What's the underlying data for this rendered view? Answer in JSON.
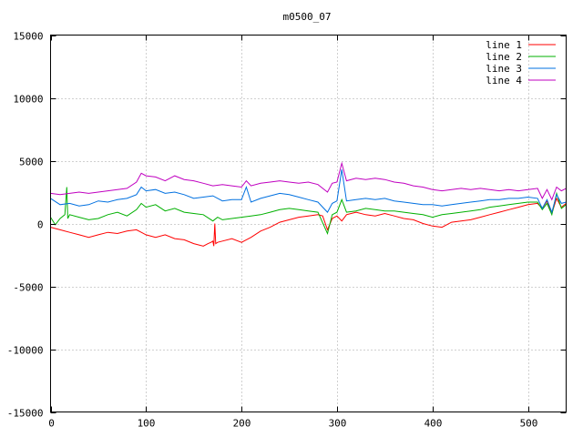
{
  "chart_data": {
    "type": "line",
    "title": "m0500_07",
    "xlabel": "",
    "ylabel": "",
    "xlim": [
      0,
      540
    ],
    "ylim": [
      -15000,
      15000
    ],
    "xticks": [
      0,
      100,
      200,
      300,
      400,
      500
    ],
    "yticks": [
      -15000,
      -10000,
      -5000,
      0,
      5000,
      10000,
      15000
    ],
    "grid": true,
    "legend_position": "top-right",
    "series": [
      {
        "name": "line 1",
        "color": "#ff0000",
        "points": [
          [
            0,
            -300
          ],
          [
            10,
            -500
          ],
          [
            20,
            -700
          ],
          [
            30,
            -900
          ],
          [
            40,
            -1100
          ],
          [
            50,
            -900
          ],
          [
            60,
            -700
          ],
          [
            70,
            -800
          ],
          [
            80,
            -600
          ],
          [
            90,
            -500
          ],
          [
            100,
            -900
          ],
          [
            110,
            -1100
          ],
          [
            120,
            -900
          ],
          [
            130,
            -1200
          ],
          [
            140,
            -1300
          ],
          [
            150,
            -1600
          ],
          [
            160,
            -1800
          ],
          [
            165,
            -1600
          ],
          [
            168,
            -1500
          ],
          [
            170,
            -1400
          ],
          [
            171,
            -1800
          ],
          [
            172,
            0
          ],
          [
            173,
            -1600
          ],
          [
            175,
            -1500
          ],
          [
            180,
            -1400
          ],
          [
            190,
            -1200
          ],
          [
            200,
            -1500
          ],
          [
            210,
            -1100
          ],
          [
            220,
            -600
          ],
          [
            230,
            -300
          ],
          [
            240,
            100
          ],
          [
            250,
            300
          ],
          [
            260,
            500
          ],
          [
            270,
            600
          ],
          [
            280,
            700
          ],
          [
            285,
            600
          ],
          [
            290,
            -500
          ],
          [
            295,
            400
          ],
          [
            300,
            600
          ],
          [
            305,
            200
          ],
          [
            310,
            700
          ],
          [
            320,
            900
          ],
          [
            330,
            700
          ],
          [
            340,
            600
          ],
          [
            350,
            800
          ],
          [
            360,
            600
          ],
          [
            370,
            400
          ],
          [
            380,
            300
          ],
          [
            390,
            0
          ],
          [
            400,
            -200
          ],
          [
            410,
            -300
          ],
          [
            420,
            100
          ],
          [
            430,
            200
          ],
          [
            440,
            300
          ],
          [
            450,
            500
          ],
          [
            460,
            700
          ],
          [
            470,
            900
          ],
          [
            480,
            1100
          ],
          [
            490,
            1300
          ],
          [
            500,
            1500
          ],
          [
            510,
            1600
          ],
          [
            515,
            1200
          ],
          [
            520,
            1800
          ],
          [
            525,
            800
          ],
          [
            530,
            2000
          ],
          [
            535,
            1300
          ],
          [
            540,
            1600
          ]
        ]
      },
      {
        "name": "line 2",
        "color": "#00b000",
        "points": [
          [
            0,
            500
          ],
          [
            5,
            -100
          ],
          [
            10,
            400
          ],
          [
            15,
            700
          ],
          [
            17,
            2900
          ],
          [
            18,
            400
          ],
          [
            20,
            700
          ],
          [
            30,
            500
          ],
          [
            40,
            300
          ],
          [
            50,
            400
          ],
          [
            60,
            700
          ],
          [
            70,
            900
          ],
          [
            80,
            600
          ],
          [
            90,
            1100
          ],
          [
            95,
            1600
          ],
          [
            100,
            1300
          ],
          [
            110,
            1500
          ],
          [
            120,
            1000
          ],
          [
            130,
            1200
          ],
          [
            140,
            900
          ],
          [
            150,
            800
          ],
          [
            160,
            700
          ],
          [
            170,
            200
          ],
          [
            175,
            500
          ],
          [
            180,
            300
          ],
          [
            190,
            400
          ],
          [
            200,
            500
          ],
          [
            210,
            600
          ],
          [
            220,
            700
          ],
          [
            230,
            900
          ],
          [
            240,
            1100
          ],
          [
            250,
            1200
          ],
          [
            260,
            1100
          ],
          [
            270,
            1000
          ],
          [
            280,
            900
          ],
          [
            290,
            -800
          ],
          [
            295,
            700
          ],
          [
            300,
            900
          ],
          [
            305,
            1900
          ],
          [
            310,
            900
          ],
          [
            320,
            1000
          ],
          [
            330,
            1200
          ],
          [
            340,
            1100
          ],
          [
            350,
            1000
          ],
          [
            360,
            1000
          ],
          [
            370,
            900
          ],
          [
            380,
            800
          ],
          [
            390,
            700
          ],
          [
            400,
            500
          ],
          [
            410,
            700
          ],
          [
            420,
            800
          ],
          [
            430,
            900
          ],
          [
            440,
            1000
          ],
          [
            450,
            1100
          ],
          [
            460,
            1300
          ],
          [
            470,
            1400
          ],
          [
            480,
            1500
          ],
          [
            490,
            1600
          ],
          [
            500,
            1700
          ],
          [
            510,
            1700
          ],
          [
            515,
            1100
          ],
          [
            520,
            1600
          ],
          [
            525,
            700
          ],
          [
            530,
            2400
          ],
          [
            535,
            1200
          ],
          [
            540,
            1500
          ]
        ]
      },
      {
        "name": "line 3",
        "color": "#0070e0",
        "points": [
          [
            0,
            2000
          ],
          [
            10,
            1500
          ],
          [
            20,
            1600
          ],
          [
            30,
            1400
          ],
          [
            40,
            1500
          ],
          [
            50,
            1800
          ],
          [
            60,
            1700
          ],
          [
            70,
            1900
          ],
          [
            80,
            2000
          ],
          [
            90,
            2300
          ],
          [
            95,
            2900
          ],
          [
            100,
            2600
          ],
          [
            110,
            2700
          ],
          [
            120,
            2400
          ],
          [
            130,
            2500
          ],
          [
            140,
            2300
          ],
          [
            150,
            2000
          ],
          [
            160,
            2100
          ],
          [
            170,
            2200
          ],
          [
            180,
            1800
          ],
          [
            190,
            1900
          ],
          [
            200,
            1900
          ],
          [
            205,
            2900
          ],
          [
            210,
            1700
          ],
          [
            220,
            2000
          ],
          [
            230,
            2200
          ],
          [
            240,
            2400
          ],
          [
            250,
            2300
          ],
          [
            260,
            2100
          ],
          [
            270,
            1900
          ],
          [
            280,
            1700
          ],
          [
            290,
            900
          ],
          [
            295,
            1600
          ],
          [
            300,
            1800
          ],
          [
            305,
            4300
          ],
          [
            310,
            1800
          ],
          [
            320,
            1900
          ],
          [
            330,
            2000
          ],
          [
            340,
            1900
          ],
          [
            350,
            2000
          ],
          [
            360,
            1800
          ],
          [
            370,
            1700
          ],
          [
            380,
            1600
          ],
          [
            390,
            1500
          ],
          [
            400,
            1500
          ],
          [
            410,
            1400
          ],
          [
            420,
            1500
          ],
          [
            430,
            1600
          ],
          [
            440,
            1700
          ],
          [
            450,
            1800
          ],
          [
            460,
            1900
          ],
          [
            470,
            1900
          ],
          [
            480,
            2000
          ],
          [
            490,
            2000
          ],
          [
            500,
            2100
          ],
          [
            510,
            2000
          ],
          [
            515,
            1200
          ],
          [
            520,
            1900
          ],
          [
            525,
            900
          ],
          [
            530,
            2300
          ],
          [
            535,
            1600
          ],
          [
            540,
            1700
          ]
        ]
      },
      {
        "name": "line 4",
        "color": "#c000c0",
        "points": [
          [
            0,
            2400
          ],
          [
            10,
            2300
          ],
          [
            20,
            2400
          ],
          [
            30,
            2500
          ],
          [
            40,
            2400
          ],
          [
            50,
            2500
          ],
          [
            60,
            2600
          ],
          [
            70,
            2700
          ],
          [
            80,
            2800
          ],
          [
            90,
            3300
          ],
          [
            95,
            4000
          ],
          [
            100,
            3800
          ],
          [
            110,
            3700
          ],
          [
            120,
            3400
          ],
          [
            130,
            3800
          ],
          [
            140,
            3500
          ],
          [
            150,
            3400
          ],
          [
            160,
            3200
          ],
          [
            170,
            3000
          ],
          [
            180,
            3100
          ],
          [
            190,
            3000
          ],
          [
            200,
            2900
          ],
          [
            205,
            3400
          ],
          [
            210,
            3000
          ],
          [
            220,
            3200
          ],
          [
            230,
            3300
          ],
          [
            240,
            3400
          ],
          [
            250,
            3300
          ],
          [
            260,
            3200
          ],
          [
            270,
            3300
          ],
          [
            280,
            3100
          ],
          [
            290,
            2500
          ],
          [
            295,
            3200
          ],
          [
            300,
            3300
          ],
          [
            305,
            4800
          ],
          [
            310,
            3400
          ],
          [
            320,
            3600
          ],
          [
            330,
            3500
          ],
          [
            340,
            3600
          ],
          [
            350,
            3500
          ],
          [
            360,
            3300
          ],
          [
            370,
            3200
          ],
          [
            380,
            3000
          ],
          [
            390,
            2900
          ],
          [
            400,
            2700
          ],
          [
            410,
            2600
          ],
          [
            420,
            2700
          ],
          [
            430,
            2800
          ],
          [
            440,
            2700
          ],
          [
            450,
            2800
          ],
          [
            460,
            2700
          ],
          [
            470,
            2600
          ],
          [
            480,
            2700
          ],
          [
            490,
            2600
          ],
          [
            500,
            2700
          ],
          [
            510,
            2800
          ],
          [
            515,
            2000
          ],
          [
            520,
            2700
          ],
          [
            525,
            1900
          ],
          [
            530,
            2900
          ],
          [
            535,
            2600
          ],
          [
            540,
            2800
          ]
        ]
      }
    ]
  }
}
